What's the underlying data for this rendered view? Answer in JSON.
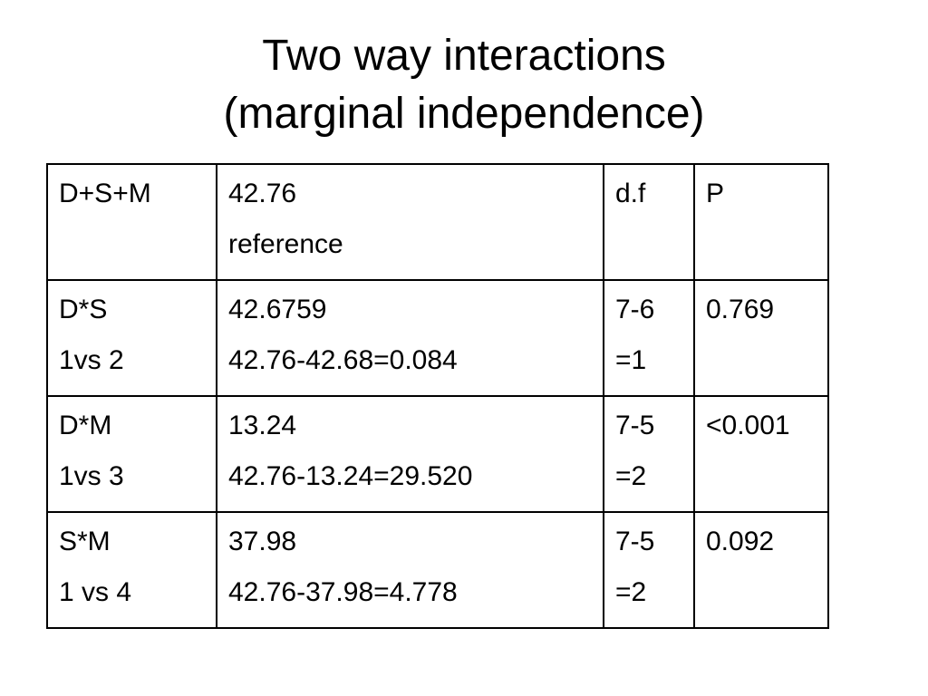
{
  "header": {
    "title": [
      "Two way interactions",
      "(marginal independence)"
    ]
  },
  "table": {
    "rows": [
      [
        [
          "D+S+M"
        ],
        [
          "42.76",
          "reference"
        ],
        [
          "d.f"
        ],
        [
          "P"
        ]
      ],
      [
        [
          "D*S",
          "1vs 2"
        ],
        [
          "42.6759",
          "42.76-42.68=0.084"
        ],
        [
          "7-6",
          "=1"
        ],
        [
          "0.769"
        ]
      ],
      [
        [
          "D*M",
          "1vs 3"
        ],
        [
          "13.24",
          "42.76-13.24=29.520"
        ],
        [
          "7-5",
          "=2"
        ],
        [
          "<0.001"
        ]
      ],
      [
        [
          "S*M",
          "1 vs 4"
        ],
        [
          "37.98",
          "42.76-37.98=4.778"
        ],
        [
          "7-5",
          "=2"
        ],
        [
          "0.092"
        ]
      ]
    ]
  }
}
